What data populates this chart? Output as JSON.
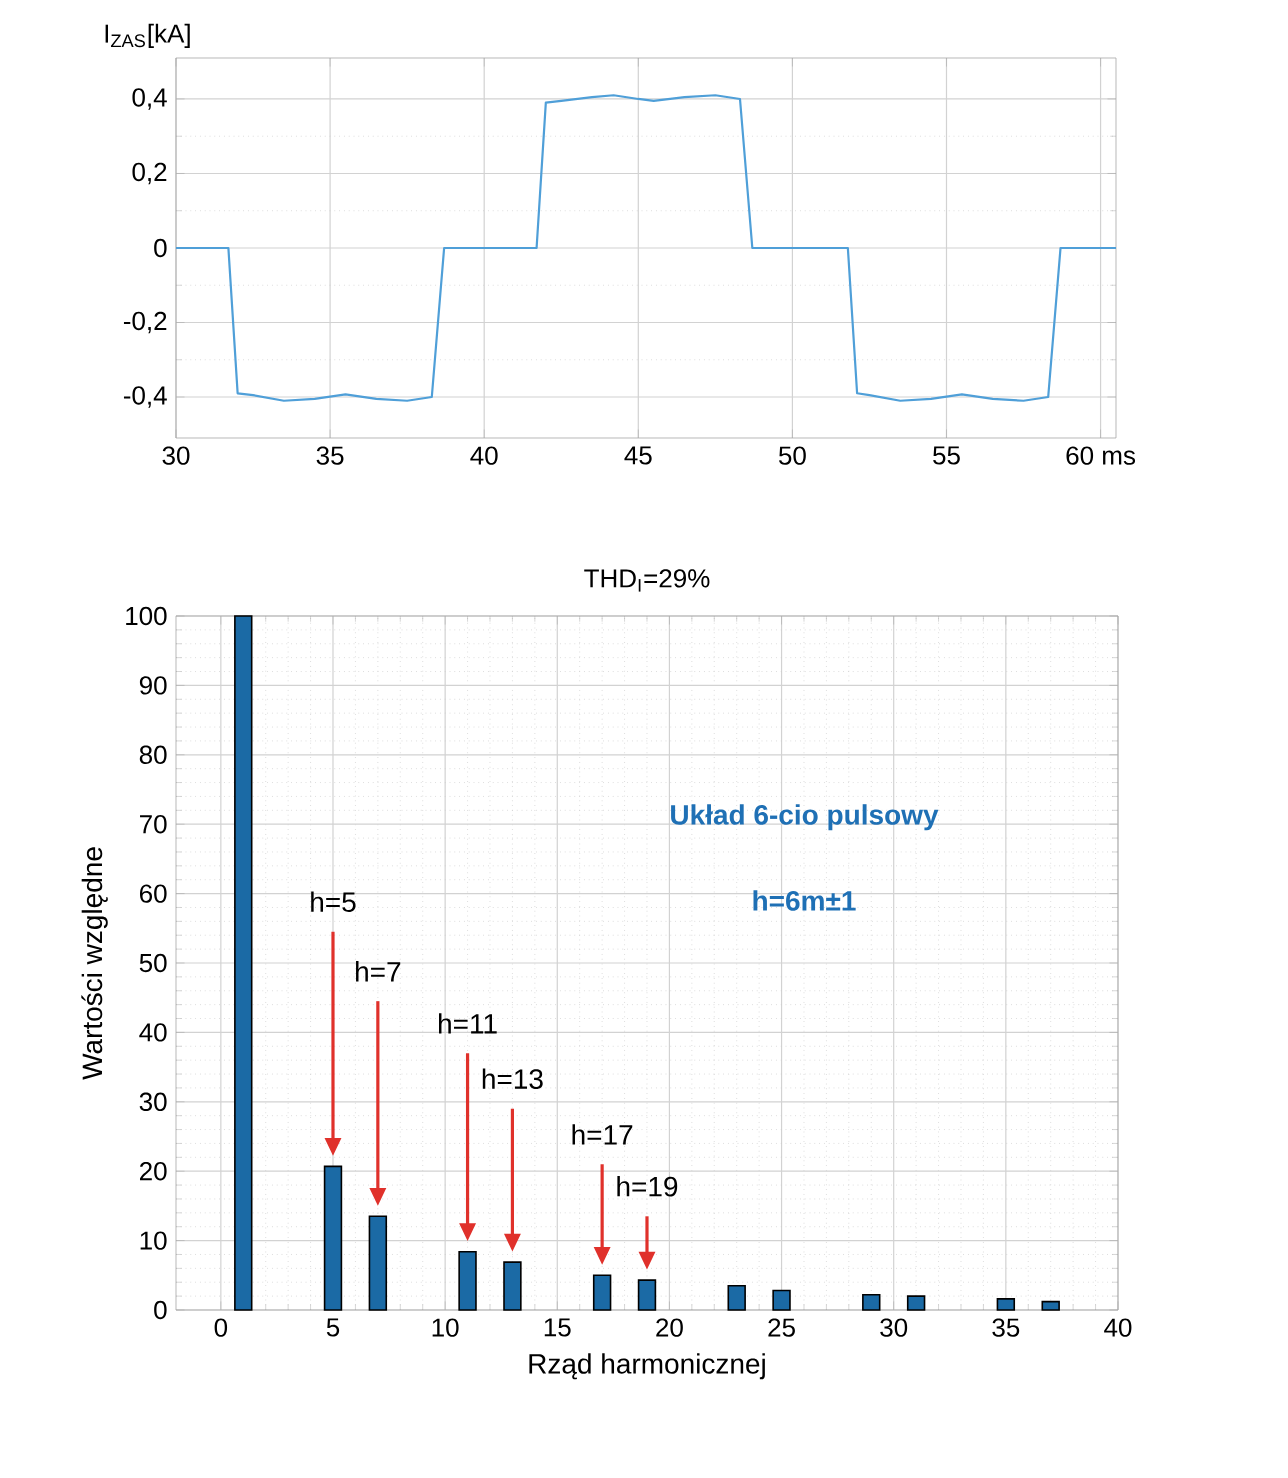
{
  "chart_data": [
    {
      "type": "line",
      "ylabel": "I$_{ZAS}$[kA]",
      "x": [
        30,
        31.7,
        32.0,
        32.5,
        33.5,
        34.5,
        35.5,
        36.5,
        37.5,
        38.3,
        38.7,
        41.7,
        42.0,
        42.5,
        43.5,
        44.2,
        45.0,
        45.5,
        46.5,
        47.5,
        48.3,
        48.7,
        51.8,
        52.1,
        52.5,
        53.5,
        54.5,
        55.5,
        56.5,
        57.5,
        58.3,
        58.7,
        60.5
      ],
      "values": [
        0,
        0,
        -0.39,
        -0.395,
        -0.41,
        -0.405,
        -0.393,
        -0.405,
        -0.41,
        -0.4,
        0,
        0,
        0.39,
        0.395,
        0.405,
        0.41,
        0.4,
        0.395,
        0.405,
        0.41,
        0.4,
        0,
        0,
        -0.39,
        -0.395,
        -0.41,
        -0.405,
        -0.393,
        -0.405,
        -0.41,
        -0.4,
        0,
        0
      ],
      "color": "#4f9fd8",
      "xlim": [
        30,
        60.5
      ],
      "ylim": [
        -0.51,
        0.51
      ],
      "xticks": [
        30,
        35,
        40,
        45,
        50,
        55,
        {
          "value": 60,
          "label": "60 ms"
        }
      ],
      "yticks": [
        {
          "value": -0.4,
          "label": "-0,4"
        },
        {
          "value": -0.2,
          "label": "-0,2"
        },
        0,
        {
          "value": 0.2,
          "label": "0,2"
        },
        {
          "value": 0.4,
          "label": "0,4"
        }
      ],
      "grid": true
    },
    {
      "type": "bar",
      "title": "THD$_{I}$=29%",
      "xlabel": "Rząd harmonicznej",
      "ylabel": "Wartości względne",
      "x": [
        1,
        5,
        7,
        11,
        13,
        17,
        19,
        23,
        25,
        29,
        31,
        35,
        37
      ],
      "values": [
        100,
        20.7,
        13.5,
        8.4,
        6.9,
        5.0,
        4.3,
        3.5,
        2.8,
        2.2,
        2.0,
        1.6,
        1.2
      ],
      "color": "#1b6aa5",
      "xlim": [
        -2,
        40
      ],
      "ylim": [
        0,
        100
      ],
      "xticks": [
        0,
        5,
        10,
        15,
        20,
        25,
        30,
        35,
        40
      ],
      "yticks": [
        0,
        10,
        20,
        30,
        40,
        50,
        60,
        70,
        80,
        90,
        100
      ],
      "grid": true,
      "annotations": [
        "Układ 6-cio pulsowy",
        "h=6m±1",
        "h=5",
        "h=7",
        "h=11",
        "h=13",
        "h=17",
        "h=19"
      ]
    }
  ]
}
